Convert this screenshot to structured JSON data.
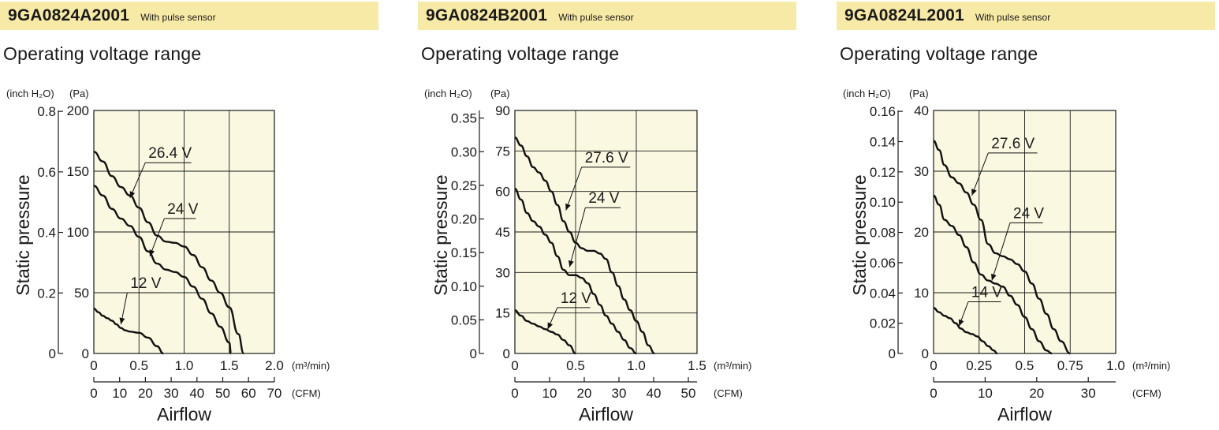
{
  "chart_data": [
    {
      "type": "line",
      "header": {
        "model": "9GA0824A2001",
        "note": "With pulse sensor"
      },
      "title": "Operating voltage range",
      "ylabel": "Static pressure",
      "xlabel": "Airflow",
      "unit_pa": "(Pa)",
      "unit_inch": "(inch H₂O)",
      "unit_m3": "(m³/min)",
      "unit_cfm": "(CFM)",
      "ylim_pa": [
        0,
        200
      ],
      "xlim_m3": [
        0,
        2.0
      ],
      "yticks_pa": [
        "0",
        "50",
        "100",
        "150",
        "200"
      ],
      "yticks_pa_values": [
        0,
        50,
        100,
        150,
        200
      ],
      "yticks_inch": [
        "0",
        "0.2",
        "0.4",
        "0.6",
        "0.8"
      ],
      "yticks_inch_values": [
        0,
        0.2,
        0.4,
        0.6,
        0.8
      ],
      "xticks_m3": [
        "0",
        "0.5",
        "1.0",
        "1.5",
        "2.0"
      ],
      "xticks_m3_values": [
        0,
        0.5,
        1.0,
        1.5,
        2.0
      ],
      "xticks_cfm": [
        "0",
        "10",
        "20",
        "30",
        "40",
        "50",
        "60",
        "70"
      ],
      "xticks_cfm_values": [
        0,
        10,
        20,
        30,
        40,
        50,
        60,
        70
      ],
      "grid": true,
      "series": [
        {
          "name": "26.4 V",
          "x": [
            0,
            0.1,
            0.2,
            0.3,
            0.4,
            0.5,
            0.6,
            0.7,
            0.8,
            0.9,
            1.0,
            1.1,
            1.2,
            1.3,
            1.4,
            1.5,
            1.6,
            1.66
          ],
          "y": [
            166,
            158,
            146,
            137,
            130,
            120,
            108,
            97,
            92,
            91,
            88,
            81,
            71,
            60,
            50,
            38,
            16,
            0
          ],
          "label": {
            "text": "26.4 V",
            "x": 0.57,
            "y": 157,
            "line_to": 1.08,
            "arrow_to": [
              0.4,
              128
            ]
          }
        },
        {
          "name": "24 V",
          "x": [
            0,
            0.1,
            0.2,
            0.3,
            0.4,
            0.5,
            0.6,
            0.7,
            0.8,
            0.9,
            1.0,
            1.1,
            1.2,
            1.3,
            1.4,
            1.5,
            1.52
          ],
          "y": [
            138,
            130,
            119,
            111,
            105,
            96,
            84,
            74,
            69,
            67,
            63,
            55,
            45,
            33,
            22,
            9,
            0
          ],
          "label": {
            "text": "24 V",
            "x": 0.78,
            "y": 111,
            "line_to": 1.13,
            "arrow_to": [
              0.62,
              80
            ]
          }
        },
        {
          "name": "12 V",
          "x": [
            0,
            0.05,
            0.1,
            0.15,
            0.2,
            0.25,
            0.3,
            0.35,
            0.4,
            0.5,
            0.6,
            0.7,
            0.77
          ],
          "y": [
            37,
            34,
            31,
            29,
            27,
            24,
            21,
            19,
            18,
            17,
            13,
            6,
            0
          ],
          "label": {
            "text": "12 V",
            "x": 0.37,
            "y": 50,
            "line_to": 0.75,
            "arrow_to": [
              0.3,
              24
            ]
          }
        }
      ]
    },
    {
      "type": "line",
      "header": {
        "model": "9GA0824B2001",
        "note": "With pulse sensor"
      },
      "title": "Operating voltage range",
      "ylabel": "Static pressure",
      "xlabel": "Airflow",
      "unit_pa": "(Pa)",
      "unit_inch": "(inch H₂O)",
      "unit_m3": "(m³/min)",
      "unit_cfm": "(CFM)",
      "ylim_pa": [
        0,
        90
      ],
      "xlim_m3": [
        0,
        1.5
      ],
      "yticks_pa": [
        "0",
        "15",
        "30",
        "45",
        "60",
        "75",
        "90"
      ],
      "yticks_pa_values": [
        0,
        15,
        30,
        45,
        60,
        75,
        90
      ],
      "yticks_inch": [
        "0",
        "0.05",
        "0.10",
        "0.15",
        "0.20",
        "0.25",
        "0.30",
        "0.35"
      ],
      "yticks_inch_values": [
        0,
        0.05,
        0.1,
        0.15,
        0.2,
        0.25,
        0.3,
        0.35
      ],
      "xticks_m3": [
        "0",
        "0.5",
        "1.0",
        "1.5"
      ],
      "xticks_m3_values": [
        0,
        0.5,
        1.0,
        1.5
      ],
      "xticks_cfm": [
        "0",
        "10",
        "20",
        "30",
        "40",
        "50"
      ],
      "xticks_cfm_values": [
        0,
        10,
        20,
        30,
        40,
        50
      ],
      "grid": true,
      "series": [
        {
          "name": "27.6 V",
          "x": [
            0,
            0.05,
            0.1,
            0.15,
            0.2,
            0.25,
            0.3,
            0.35,
            0.4,
            0.45,
            0.5,
            0.55,
            0.6,
            0.65,
            0.7,
            0.75,
            0.8,
            0.85,
            0.9,
            0.95,
            1.0,
            1.05,
            1.1,
            1.15
          ],
          "y": [
            80,
            77,
            73,
            69,
            67,
            64,
            60,
            55,
            49,
            45,
            41,
            39,
            38,
            38,
            37,
            35,
            30,
            25,
            20,
            16,
            12,
            8,
            3,
            0
          ],
          "label": {
            "text": "27.6 V",
            "x": 0.55,
            "y": 69,
            "line_to": 0.95,
            "arrow_to": [
              0.42,
              53
            ]
          }
        },
        {
          "name": "24 V",
          "x": [
            0,
            0.05,
            0.1,
            0.15,
            0.2,
            0.25,
            0.3,
            0.35,
            0.4,
            0.45,
            0.5,
            0.55,
            0.6,
            0.65,
            0.7,
            0.75,
            0.8,
            0.85,
            0.9,
            0.95,
            1.0
          ],
          "y": [
            61,
            57,
            52,
            49,
            47,
            44,
            41,
            36,
            31,
            29,
            29,
            28,
            26,
            22,
            18,
            14,
            11,
            8,
            5,
            2,
            0
          ],
          "label": {
            "text": "24 V",
            "x": 0.58,
            "y": 54,
            "line_to": 0.87,
            "arrow_to": [
              0.45,
              32
            ]
          }
        },
        {
          "name": "12 V",
          "x": [
            0,
            0.05,
            0.1,
            0.15,
            0.2,
            0.25,
            0.3,
            0.35,
            0.4,
            0.45,
            0.5
          ],
          "y": [
            16,
            14,
            12,
            11,
            10,
            9,
            8,
            7,
            5,
            3,
            0
          ],
          "label": {
            "text": "12 V",
            "x": 0.35,
            "y": 17,
            "line_to": 0.62,
            "arrow_to": [
              0.27,
              9
            ]
          }
        }
      ]
    },
    {
      "type": "line",
      "header": {
        "model": "9GA0824L2001",
        "note": "With pulse sensor"
      },
      "title": "Operating voltage range",
      "ylabel": "Static pressure",
      "xlabel": "Airflow",
      "unit_pa": "(Pa)",
      "unit_inch": "(inch H₂O)",
      "unit_m3": "(m³/min)",
      "unit_cfm": "(CFM)",
      "ylim_pa": [
        0,
        40
      ],
      "xlim_m3": [
        0,
        1.0
      ],
      "yticks_pa": [
        "0",
        "10",
        "20",
        "30",
        "40"
      ],
      "yticks_pa_values": [
        0,
        10,
        20,
        30,
        40
      ],
      "yticks_inch": [
        "0",
        "0.02",
        "0.04",
        "0.06",
        "0.08",
        "0.10",
        "0.12",
        "0.14",
        "0.16"
      ],
      "yticks_inch_values": [
        0,
        0.02,
        0.04,
        0.06,
        0.08,
        0.1,
        0.12,
        0.14,
        0.16
      ],
      "xticks_m3": [
        "0",
        "0.25",
        "0.5",
        "0.75",
        "1.0"
      ],
      "xticks_m3_values": [
        0,
        0.25,
        0.5,
        0.75,
        1.0
      ],
      "xticks_cfm": [
        "0",
        "10",
        "20",
        "30"
      ],
      "xticks_cfm_values": [
        0,
        10,
        20,
        30
      ],
      "grid": true,
      "series": [
        {
          "name": "27.6 V",
          "x": [
            0,
            0.03,
            0.06,
            0.1,
            0.14,
            0.18,
            0.22,
            0.26,
            0.3,
            0.34,
            0.38,
            0.42,
            0.46,
            0.5,
            0.54,
            0.58,
            0.62,
            0.66,
            0.7,
            0.75
          ],
          "y": [
            35,
            33.5,
            31,
            29,
            28,
            26.5,
            24.5,
            22,
            18,
            16.5,
            16,
            15.5,
            14.7,
            13.5,
            11.5,
            9,
            6.5,
            4,
            2,
            0
          ],
          "label": {
            "text": "27.6 V",
            "x": 0.3,
            "y": 33,
            "line_to": 0.57,
            "arrow_to": [
              0.21,
              26
            ]
          }
        },
        {
          "name": "24 V",
          "x": [
            0,
            0.03,
            0.06,
            0.1,
            0.14,
            0.18,
            0.22,
            0.26,
            0.3,
            0.34,
            0.38,
            0.42,
            0.46,
            0.5,
            0.54,
            0.58,
            0.62,
            0.65
          ],
          "y": [
            26,
            24.5,
            22,
            21,
            19.5,
            17.5,
            15,
            13,
            12,
            11.5,
            11,
            9.5,
            8,
            6,
            4,
            2,
            0.5,
            0
          ],
          "label": {
            "text": "24 V",
            "x": 0.42,
            "y": 21.5,
            "line_to": 0.6,
            "arrow_to": [
              0.32,
              12
            ]
          }
        },
        {
          "name": "14 V",
          "x": [
            0,
            0.03,
            0.06,
            0.09,
            0.12,
            0.15,
            0.18,
            0.21,
            0.24,
            0.27,
            0.3,
            0.33,
            0.35
          ],
          "y": [
            7.5,
            6.8,
            6.2,
            5.8,
            5,
            4.1,
            3.5,
            3.2,
            2.8,
            2,
            1.2,
            0.5,
            0
          ],
          "label": {
            "text": "14 V",
            "x": 0.19,
            "y": 8.5,
            "line_to": 0.37,
            "arrow_to": [
              0.14,
              4.5
            ]
          }
        }
      ]
    }
  ]
}
